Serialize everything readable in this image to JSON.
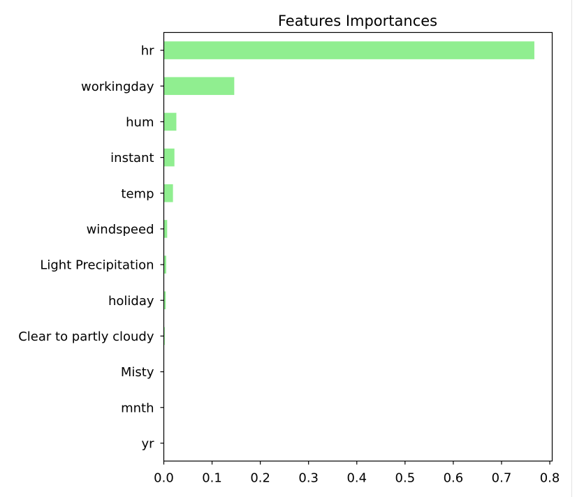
{
  "chart_data": {
    "type": "bar",
    "orientation": "horizontal",
    "title": "Features Importances",
    "xlabel": "",
    "ylabel": "",
    "categories": [
      "hr",
      "workingday",
      "hum",
      "instant",
      "temp",
      "windspeed",
      "Light Precipitation",
      "holiday",
      "Clear to partly cloudy",
      "Misty",
      "mnth",
      "yr"
    ],
    "values": [
      0.768,
      0.146,
      0.026,
      0.022,
      0.019,
      0.007,
      0.005,
      0.004,
      0.002,
      0.0005,
      0.0004,
      0.0003
    ],
    "xlim": [
      0.0,
      0.805
    ],
    "xticks": [
      0.0,
      0.1,
      0.2,
      0.3,
      0.4,
      0.5,
      0.6,
      0.7,
      0.8
    ],
    "xtick_labels": [
      "0.0",
      "0.1",
      "0.2",
      "0.3",
      "0.4",
      "0.5",
      "0.6",
      "0.7",
      "0.8"
    ],
    "grid": false,
    "legend": "none",
    "bar_color": "#90ee90",
    "axis_color": "#000000"
  }
}
